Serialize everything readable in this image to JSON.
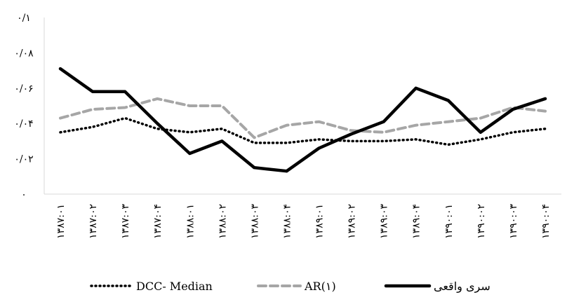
{
  "chart_data": {
    "type": "line",
    "title": "",
    "xlabel": "",
    "ylabel": "",
    "ylim": [
      0,
      0.1
    ],
    "grid": false,
    "legend_position": "bottom",
    "y_ticks": [
      {
        "value": 0,
        "label": "۰"
      },
      {
        "value": 0.02,
        "label": "۰/۰۲"
      },
      {
        "value": 0.04,
        "label": "۰/۰۴"
      },
      {
        "value": 0.06,
        "label": "۰/۰۶"
      },
      {
        "value": 0.08,
        "label": "۰/۰۸"
      },
      {
        "value": 0.1,
        "label": "۰/۱"
      }
    ],
    "categories": [
      "۱۳۸۷:۰۱",
      "۱۳۸۷:۰۲",
      "۱۳۸۷:۰۳",
      "۱۳۸۷:۰۴",
      "۱۳۸۸:۰۱",
      "۱۳۸۸:۰۲",
      "۱۳۸۸:۰۳",
      "۱۳۸۸:۰۴",
      "۱۳۸۹:۰۱",
      "۱۳۸۹:۰۲",
      "۱۳۸۹:۰۳",
      "۱۳۸۹:۰۴",
      "۱۳۹۰:۰۱",
      "۱۳۹۰:۰۲",
      "۱۳۹۰:۰۳",
      "۱۳۹۰:۰۴"
    ],
    "series": [
      {
        "name": "DCC- Median",
        "style": "dotted",
        "color": "#000000",
        "values": [
          0.035,
          0.038,
          0.043,
          0.037,
          0.035,
          0.037,
          0.029,
          0.029,
          0.031,
          0.03,
          0.03,
          0.031,
          0.028,
          0.031,
          0.035,
          0.037
        ]
      },
      {
        "name": "AR(۱)",
        "style": "dashed",
        "color": "#a6a6a6",
        "values": [
          0.043,
          0.048,
          0.049,
          0.054,
          0.05,
          0.05,
          0.032,
          0.039,
          0.041,
          0.036,
          0.035,
          0.039,
          0.041,
          0.043,
          0.049,
          0.047
        ]
      },
      {
        "name": "سری واقعی",
        "style": "solid",
        "color": "#000000",
        "values": [
          0.071,
          0.058,
          0.058,
          0.04,
          0.023,
          0.03,
          0.015,
          0.013,
          0.026,
          0.034,
          0.041,
          0.06,
          0.053,
          0.035,
          0.048,
          0.054
        ]
      }
    ],
    "legend_order": [
      0,
      1,
      2
    ]
  }
}
